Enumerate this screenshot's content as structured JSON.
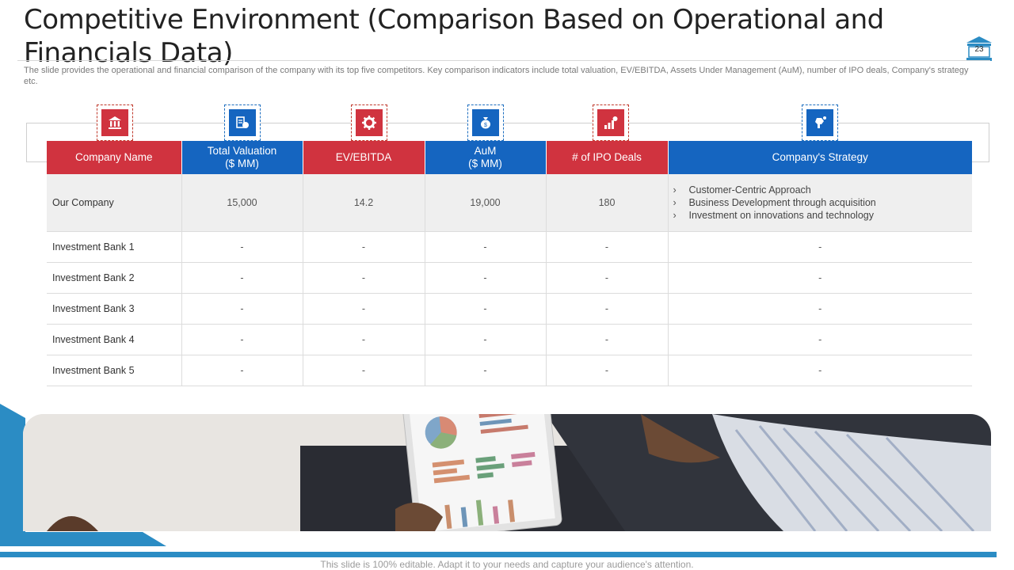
{
  "slide": {
    "title": "Competitive Environment (Comparison Based on Operational and Financials Data)",
    "subtitle": "The slide provides the operational and financial comparison of the company with its top five competitors. Key comparison indicators include total valuation, EV/EBITDA,  Assets Under Management (AuM), number of IPO deals, Company's strategy etc.",
    "page_number": "23",
    "footer": "This slide is 100% editable. Adapt it to your needs and capture your audience's attention."
  },
  "colors": {
    "red": "#d0333f",
    "blue": "#1565c0",
    "accent": "#2b8cc4"
  },
  "icons": [
    "bank-icon",
    "valuation-icon",
    "gear-icon",
    "money-bag-icon",
    "bar-chart-icon",
    "strategy-icon"
  ],
  "table": {
    "headers": [
      {
        "line1": "Company Name",
        "line2": ""
      },
      {
        "line1": "Total Valuation",
        "line2": "($ MM)"
      },
      {
        "line1": "EV/EBITDA",
        "line2": ""
      },
      {
        "line1": "AuM",
        "line2": "($ MM)"
      },
      {
        "line1": "# of IPO Deals",
        "line2": ""
      },
      {
        "line1": "Company's Strategy",
        "line2": ""
      }
    ],
    "highlight_row": {
      "name": "Our Company",
      "total_valuation": "15,000",
      "ev_ebitda": "14.2",
      "aum": "19,000",
      "ipo_deals": "180",
      "strategy": [
        "Customer-Centric  Approach",
        "Business Development  through  acquisition",
        "Investment  on innovations  and technology"
      ],
      "bullet": "›"
    },
    "rows": [
      {
        "name": "Investment  Bank 1",
        "total_valuation": "-",
        "ev_ebitda": "-",
        "aum": "-",
        "ipo_deals": "-",
        "strategy": "-"
      },
      {
        "name": "Investment  Bank 2",
        "total_valuation": "-",
        "ev_ebitda": "-",
        "aum": "-",
        "ipo_deals": "-",
        "strategy": "-"
      },
      {
        "name": "Investment  Bank 3",
        "total_valuation": "-",
        "ev_ebitda": "-",
        "aum": "-",
        "ipo_deals": "-",
        "strategy": "-"
      },
      {
        "name": "Investment  Bank 4",
        "total_valuation": "-",
        "ev_ebitda": "-",
        "aum": "-",
        "ipo_deals": "-",
        "strategy": "-"
      },
      {
        "name": "Investment  Bank 5",
        "total_valuation": "-",
        "ev_ebitda": "-",
        "aum": "-",
        "ipo_deals": "-",
        "strategy": "-"
      }
    ]
  }
}
